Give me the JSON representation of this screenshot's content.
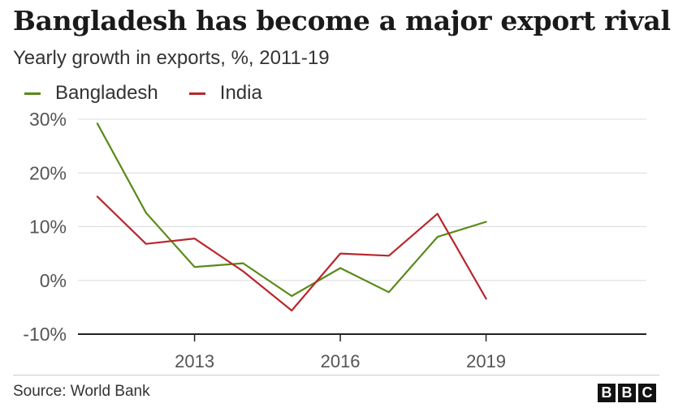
{
  "title": "Bangladesh has become a major export rival",
  "subtitle": "Yearly growth in exports, %, 2011-19",
  "legend": [
    {
      "label": "Bangladesh",
      "color": "#588a17"
    },
    {
      "label": "India",
      "color": "#b8272d"
    }
  ],
  "source": "Source: World Bank",
  "logo": {
    "letters": [
      "B",
      "B",
      "C"
    ]
  },
  "chart_data": {
    "type": "line",
    "title": "Bangladesh has become a major export rival",
    "subtitle": "Yearly growth in exports, %, 2011-19",
    "xlabel": "",
    "ylabel": "",
    "x": [
      2011,
      2012,
      2013,
      2014,
      2015,
      2016,
      2017,
      2018,
      2019
    ],
    "xlim": [
      2010.6,
      2022.3
    ],
    "ylim": [
      -10,
      30
    ],
    "yticks": [
      30,
      20,
      10,
      0,
      -10
    ],
    "ytick_labels": [
      "30%",
      "20%",
      "10%",
      "0%",
      "-10%"
    ],
    "xticks": [
      2013,
      2016,
      2019
    ],
    "xtick_labels": [
      "2013",
      "2016",
      "2019"
    ],
    "grid": true,
    "legend_position": "top-left",
    "series": [
      {
        "name": "Bangladesh",
        "color": "#588a17",
        "values": [
          29.2,
          12.6,
          2.5,
          3.2,
          -2.9,
          2.3,
          -2.2,
          8.1,
          10.9
        ]
      },
      {
        "name": "India",
        "color": "#b8272d",
        "values": [
          15.6,
          6.8,
          7.8,
          1.7,
          -5.6,
          5.0,
          4.6,
          12.4,
          -3.4
        ]
      }
    ]
  }
}
